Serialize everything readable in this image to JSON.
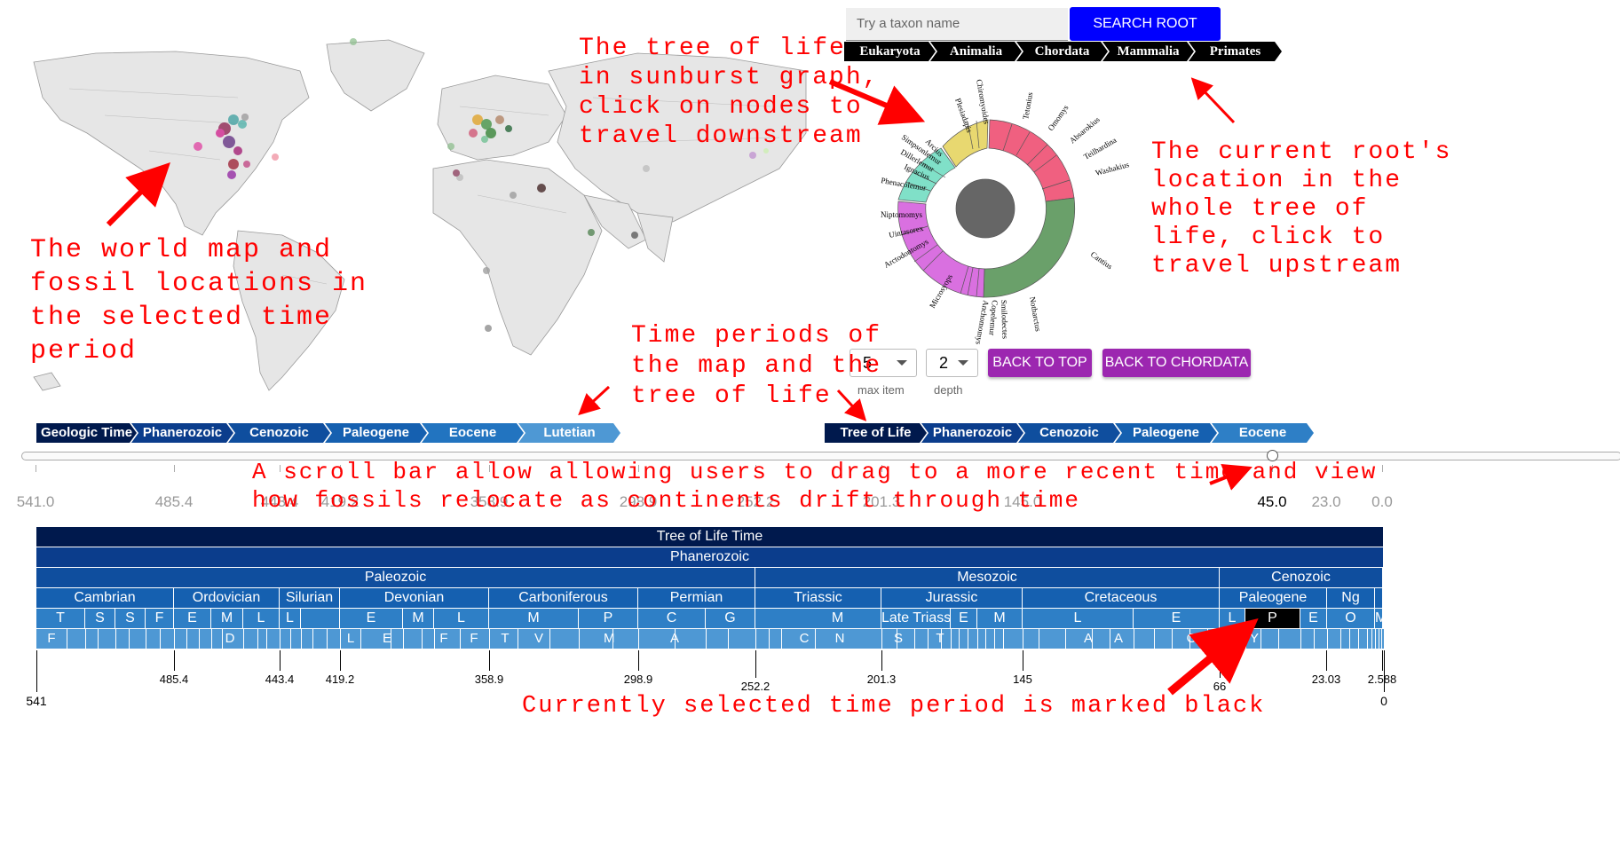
{
  "search": {
    "placeholder": "Try a taxon name",
    "button_label": "SEARCH ROOT"
  },
  "taxon_breadcrumb": [
    "Eukaryota",
    "Animalia",
    "Chordata",
    "Mammalia",
    "Primates"
  ],
  "controls": {
    "max_item_value": "5",
    "max_item_label": "max item",
    "depth_value": "2",
    "depth_label": "depth",
    "back_to_top": "BACK TO TOP",
    "back_to_chordata": "BACK TO CHORDATA"
  },
  "map_breadcrumb": [
    "Geologic Time",
    "Phanerozoic",
    "Cenozoic",
    "Paleogene",
    "Eocene",
    "Lutetian"
  ],
  "tree_breadcrumb": [
    "Tree of Life Time",
    "Phanerozoic",
    "Cenozoic",
    "Paleogene",
    "Eocene"
  ],
  "slider": {
    "labels": [
      "541.0",
      "485.4",
      "443.4",
      "419.2",
      "358.9",
      "298.9",
      "252.2",
      "201.3",
      "145.0",
      "45.0",
      "23.0",
      "0.0"
    ],
    "selected": "45.0"
  },
  "sunburst_labels": [
    "Tetonius",
    "Omomys",
    "Absarokius",
    "Teilhardina",
    "Washakius",
    "Cantius",
    "Notharctus",
    "Smilodectes",
    "Copelemur",
    "Anchomomys",
    "Microsyops",
    "Arctodontomys",
    "Uintasorex",
    "Niptomomys",
    "Phenacolemur",
    "Ignacius",
    "Dillerlemur",
    "Simpsonlemur",
    "Arcius",
    "Plesiadapis",
    "Chiromyoides"
  ],
  "timeline": {
    "row1": "Tree of Life Time",
    "row2": "Phanerozoic",
    "eras": [
      "Paleozoic",
      "Mesozoic",
      "Cenozoic"
    ],
    "periods": [
      "Cambrian",
      "Ordovician",
      "Silurian",
      "Devonian",
      "Carboniferous",
      "Permian",
      "Triassic",
      "Jurassic",
      "Cretaceous",
      "Paleogene",
      "Ng"
    ],
    "epochs": [
      "T",
      "S",
      "S",
      "F",
      "E",
      "M",
      "L",
      "L",
      "E",
      "M",
      "L",
      "M",
      "P",
      "C",
      "G",
      "M",
      "Late Triassic",
      "E",
      "M",
      "L",
      "E",
      "L",
      "P",
      "E",
      "O",
      "M"
    ],
    "ages": [
      "F",
      "D",
      "L",
      "E",
      "F",
      "F",
      "T",
      "V",
      "M",
      "A",
      "C",
      "N",
      "S",
      "T",
      "A",
      "A",
      "C",
      "Y"
    ],
    "ticks": [
      "541",
      "485.4",
      "443.4",
      "419.2",
      "358.9",
      "298.9",
      "252.2",
      "201.3",
      "145",
      "66",
      "23.03",
      "2.588",
      "0"
    ]
  },
  "annotations": {
    "map": "The world map and\nfossil locations in\nthe selected time\nperiod",
    "sunburst": "The tree of life\nin sunburst graph,\nclick on nodes to\ntravel downstream",
    "root": "The current root's\nlocation in the\nwhole tree of\nlife, click to\ntravel upstream",
    "periods": "Time periods of\nthe map and the\ntree of life",
    "scroll": "A scroll bar allow allowing users to drag to a more recent time and view\nhow fossils relocate as continents drift through time",
    "selected": "Currently selected time period is marked black"
  },
  "colors": {
    "navy": "#00194d",
    "blue1": "#0b3d8c",
    "blue2": "#1560b0",
    "blue3": "#3a8fd0",
    "search_btn": "#0000ff",
    "purple_btn": "#9c27b0",
    "annot": "#ff0000"
  }
}
